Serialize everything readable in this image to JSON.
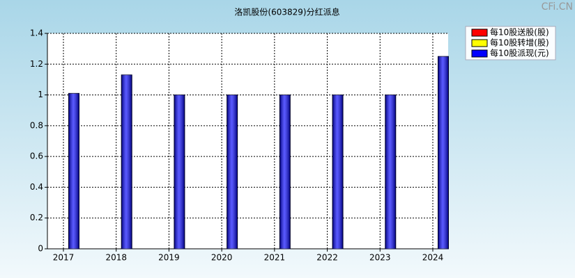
{
  "chart_data": {
    "type": "bar",
    "title": "洛凯股份(603829)分红派息",
    "watermark": "CFi.CN",
    "categories": [
      "2017",
      "2018",
      "2019",
      "2020",
      "2021",
      "2022",
      "2023",
      "2024"
    ],
    "series": [
      {
        "name": "每10股送股(股)",
        "color": "#ff0000",
        "values": [
          0,
          0,
          0,
          0,
          0,
          0,
          0,
          0
        ]
      },
      {
        "name": "每10股转增(股)",
        "color": "#ffff00",
        "values": [
          0,
          0,
          0,
          0,
          0,
          0,
          0,
          0
        ]
      },
      {
        "name": "每10股派现(元)",
        "color": "#0000ff",
        "values": [
          1.01,
          1.13,
          1,
          1,
          1,
          1,
          1,
          1.25
        ]
      }
    ],
    "ylim": [
      0,
      1.4
    ],
    "yticks": [
      0,
      0.2,
      0.4,
      0.6,
      0.8,
      1,
      1.2,
      1.4
    ],
    "grid": true,
    "legend": "top-right"
  }
}
